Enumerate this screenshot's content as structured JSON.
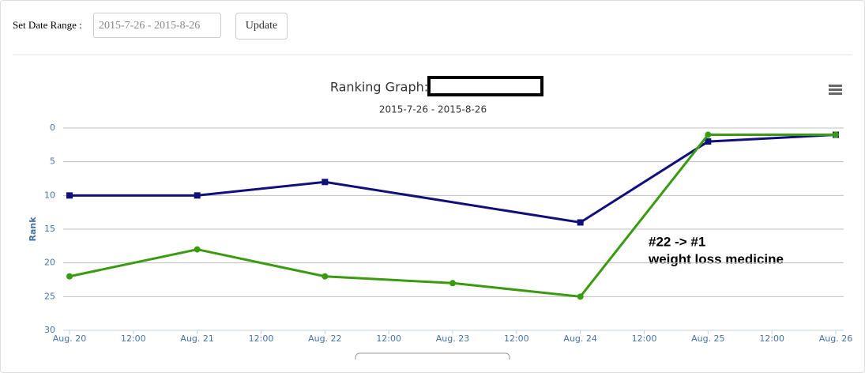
{
  "form": {
    "label": "Set Date Range :",
    "date_range": "2015-7-26 - 2015-8-26",
    "button": "Update"
  },
  "chart_data": {
    "type": "line",
    "title": "Ranking Graph:",
    "subtitle": "2015-7-26 - 2015-8-26",
    "y_label": "Rank",
    "categories": [
      "Aug. 20",
      "Aug. 21",
      "Aug. 22",
      "Aug. 23",
      "Aug. 24",
      "Aug. 25",
      "Aug. 26"
    ],
    "between_label": "12:00",
    "series": [
      {
        "color": "#10107a",
        "marker": "square",
        "x": [
          "Aug. 20",
          "Aug. 21",
          "Aug. 22",
          "Aug. 24",
          "Aug. 25",
          "Aug. 26"
        ],
        "values": [
          10,
          10,
          8,
          14,
          2,
          1
        ]
      },
      {
        "color": "#3a9a10",
        "marker": "circle",
        "x": [
          "Aug. 20",
          "Aug. 21",
          "Aug. 22",
          "Aug. 23",
          "Aug. 24",
          "Aug. 25",
          "Aug. 26"
        ],
        "values": [
          22,
          18,
          22,
          23,
          25,
          1,
          1
        ]
      }
    ],
    "ylim": [
      0,
      30
    ],
    "yticks": [
      0,
      5,
      10,
      15,
      20,
      25,
      30
    ],
    "reversed": true,
    "grid": true,
    "annotation": [
      "#22 -> #1",
      "weight loss medicine"
    ]
  }
}
